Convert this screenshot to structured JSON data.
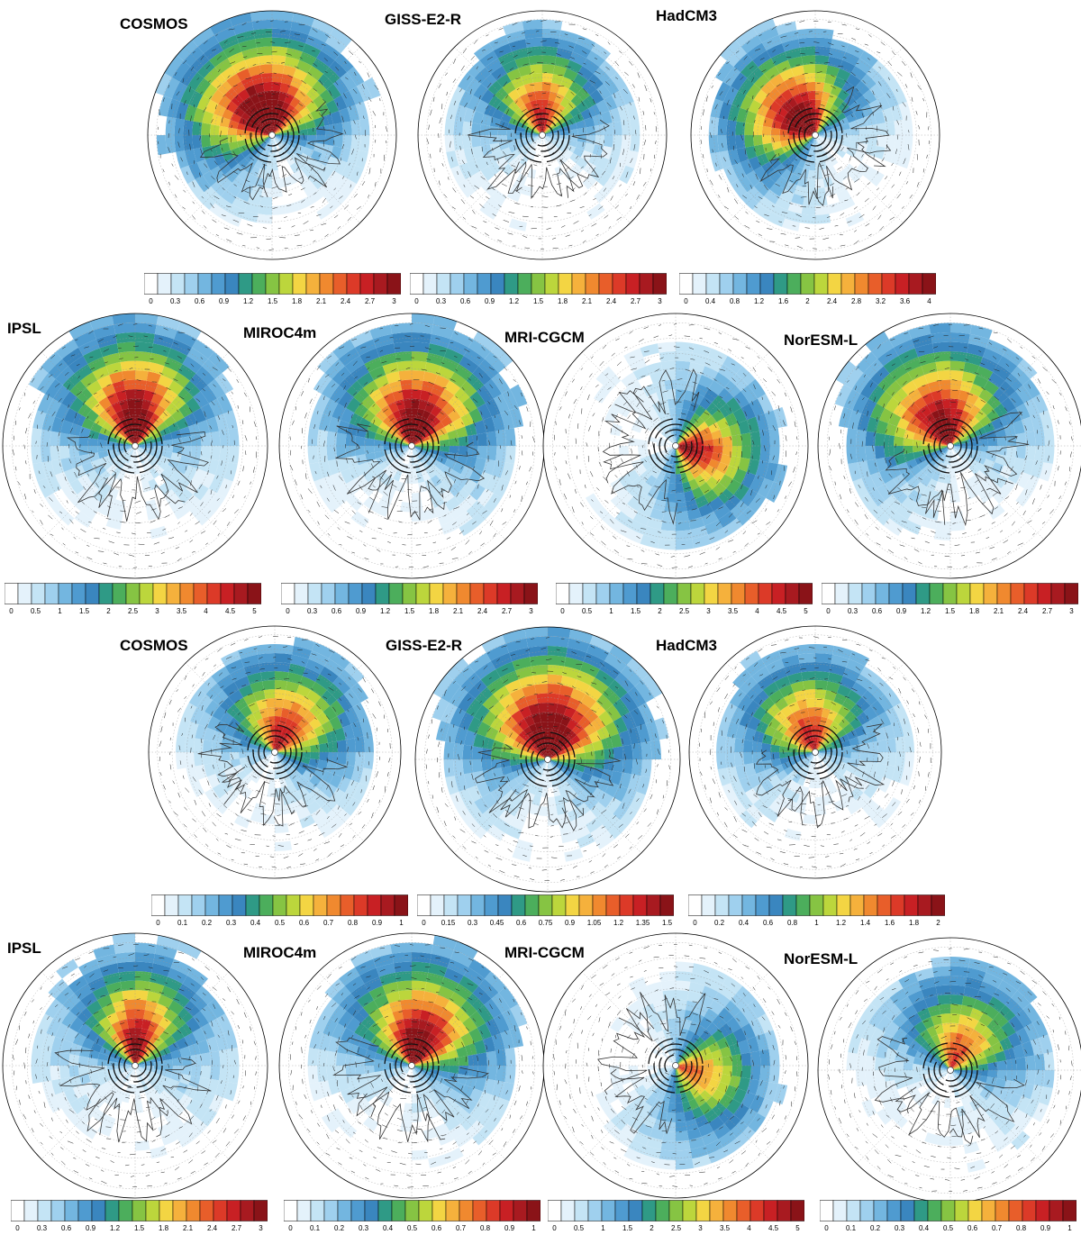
{
  "figure": {
    "panel_sets": [
      {
        "set": "upper",
        "panels": [
          {
            "title": "COSMOS",
            "colorbar_ticks": [
              "0",
              "0.3",
              "0.6",
              "0.9",
              "1.2",
              "1.5",
              "1.8",
              "2.1",
              "2.4",
              "2.7",
              "3"
            ],
            "level_max": 3
          },
          {
            "title": "GISS-E2-R",
            "colorbar_ticks": [
              "0",
              "0.3",
              "0.6",
              "0.9",
              "1.2",
              "1.5",
              "1.8",
              "2.1",
              "2.4",
              "2.7",
              "3"
            ],
            "level_max": 3
          },
          {
            "title": "HadCM3",
            "colorbar_ticks": [
              "0",
              "0.4",
              "0.8",
              "1.2",
              "1.6",
              "2",
              "2.4",
              "2.8",
              "3.2",
              "3.6",
              "4"
            ],
            "level_max": 4
          },
          {
            "title": "IPSL",
            "colorbar_ticks": [
              "0",
              "0.5",
              "1",
              "1.5",
              "2",
              "2.5",
              "3",
              "3.5",
              "4",
              "4.5",
              "5"
            ],
            "level_max": 5
          },
          {
            "title": "MIROC4m",
            "colorbar_ticks": [
              "0",
              "0.3",
              "0.6",
              "0.9",
              "1.2",
              "1.5",
              "1.8",
              "2.1",
              "2.4",
              "2.7",
              "3"
            ],
            "level_max": 3
          },
          {
            "title": "MRI-CGCM",
            "colorbar_ticks": [
              "0",
              "0.5",
              "1",
              "1.5",
              "2",
              "2.5",
              "3",
              "3.5",
              "4",
              "4.5",
              "5"
            ],
            "level_max": 5
          },
          {
            "title": "NorESM-L",
            "colorbar_ticks": [
              "0",
              "0.3",
              "0.6",
              "0.9",
              "1.2",
              "1.5",
              "1.8",
              "2.1",
              "2.4",
              "2.7",
              "3"
            ],
            "level_max": 3
          }
        ]
      },
      {
        "set": "lower",
        "panels": [
          {
            "title": "COSMOS",
            "colorbar_ticks": [
              "0",
              "0.1",
              "0.2",
              "0.3",
              "0.4",
              "0.5",
              "0.6",
              "0.7",
              "0.8",
              "0.9",
              "1"
            ],
            "level_max": 1
          },
          {
            "title": "GISS-E2-R",
            "colorbar_ticks": [
              "0",
              "0.15",
              "0.3",
              "0.45",
              "0.6",
              "0.75",
              "0.9",
              "1.05",
              "1.2",
              "1.35",
              "1.5"
            ],
            "level_max": 1.5
          },
          {
            "title": "HadCM3",
            "colorbar_ticks": [
              "0",
              "0.2",
              "0.4",
              "0.6",
              "0.8",
              "1",
              "1.2",
              "1.4",
              "1.6",
              "1.8",
              "2"
            ],
            "level_max": 2
          },
          {
            "title": "IPSL",
            "colorbar_ticks": [
              "0",
              "0.3",
              "0.6",
              "0.9",
              "1.2",
              "1.5",
              "1.8",
              "2.1",
              "2.4",
              "2.7",
              "3"
            ],
            "level_max": 3
          },
          {
            "title": "MIROC4m",
            "colorbar_ticks": [
              "0",
              "0.1",
              "0.2",
              "0.3",
              "0.4",
              "0.5",
              "0.6",
              "0.7",
              "0.8",
              "0.9",
              "1"
            ],
            "level_max": 1
          },
          {
            "title": "MRI-CGCM",
            "colorbar_ticks": [
              "0",
              "0.5",
              "1",
              "1.5",
              "2",
              "2.5",
              "3",
              "3.5",
              "4",
              "4.5",
              "5"
            ],
            "level_max": 5
          },
          {
            "title": "NorESM-L",
            "colorbar_ticks": [
              "0",
              "0.1",
              "0.2",
              "0.3",
              "0.4",
              "0.5",
              "0.6",
              "0.7",
              "0.8",
              "0.9",
              "1"
            ],
            "level_max": 1
          }
        ]
      }
    ],
    "palette": [
      "#ffffff",
      "#e4f2fb",
      "#c4e4f5",
      "#9fd0ee",
      "#73b6e0",
      "#4f9bd0",
      "#3a86bf",
      "#2f9a86",
      "#4cae5c",
      "#86c443",
      "#bcd63c",
      "#f3d543",
      "#f5b13c",
      "#f0892f",
      "#e85e2a",
      "#dc3a28",
      "#c82024",
      "#a81a20",
      "#8a1318"
    ],
    "map_style": {
      "land_outline": "#333333",
      "grid": "#9a9a9a",
      "vectors": "#222222",
      "frame": "#000000"
    }
  }
}
